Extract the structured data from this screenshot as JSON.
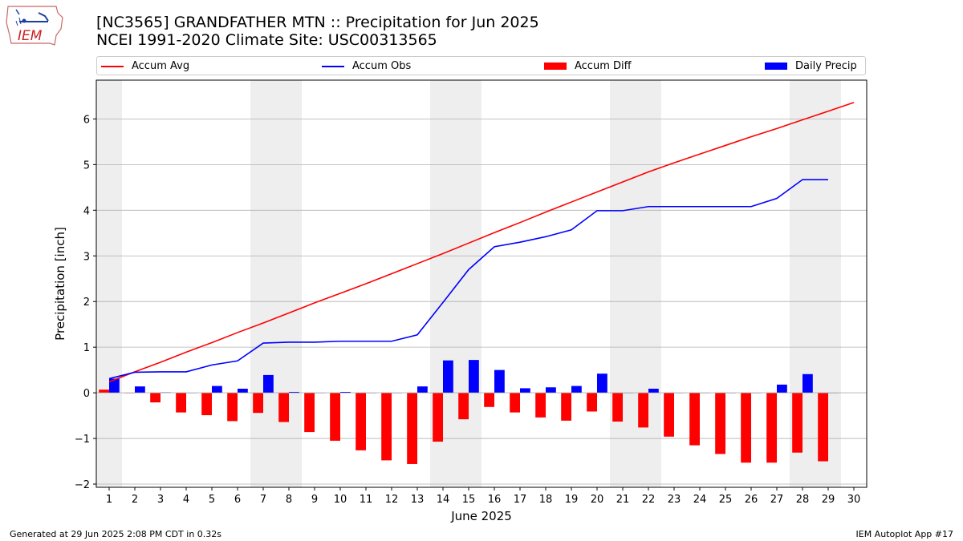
{
  "header": {
    "title_line1": "[NC3565] GRANDFATHER MTN :: Precipitation for Jun 2025",
    "title_line2": "NCEI 1991-2020 Climate Site: USC00313565",
    "logo_text": "IEM"
  },
  "footer": {
    "generated": "Generated at 29 Jun 2025 2:08 PM CDT in 0.32s",
    "app": "IEM Autoplot App #17"
  },
  "colors": {
    "accum_avg": "#ff0000",
    "accum_obs": "#0000ff",
    "accum_diff": "#ff0000",
    "daily_precip": "#0000ff",
    "weekend_shade": "#eeeeee",
    "grid": "#b0b0b0"
  },
  "chart_data": {
    "type": "bar",
    "xlabel": "June 2025",
    "ylabel": "Precipitation [inch]",
    "xlim": [
      0.5,
      30.5
    ],
    "ylim": [
      -2.07,
      6.85
    ],
    "x_ticks": [
      1,
      2,
      3,
      4,
      5,
      6,
      7,
      8,
      9,
      10,
      11,
      12,
      13,
      14,
      15,
      16,
      17,
      18,
      19,
      20,
      21,
      22,
      23,
      24,
      25,
      26,
      27,
      28,
      29,
      30
    ],
    "y_ticks": [
      -2,
      -1,
      0,
      1,
      2,
      3,
      4,
      5,
      6
    ],
    "grid": "horizontal",
    "legend_placement": "top",
    "shaded_weekend_spans": [
      [
        0.5,
        1.5
      ],
      [
        6.5,
        8.5
      ],
      [
        13.5,
        15.5
      ],
      [
        20.5,
        22.5
      ],
      [
        27.5,
        29.5
      ]
    ],
    "series": [
      {
        "name": "Accum Avg",
        "kind": "line",
        "x": [
          1,
          2,
          3,
          4,
          5,
          6,
          7,
          8,
          9,
          10,
          11,
          12,
          13,
          14,
          15,
          16,
          17,
          18,
          19,
          20,
          21,
          22,
          23,
          24,
          25,
          26,
          27,
          28,
          29,
          30
        ],
        "values": [
          0.24,
          0.46,
          0.67,
          0.89,
          1.1,
          1.32,
          1.53,
          1.75,
          1.97,
          2.18,
          2.39,
          2.61,
          2.83,
          3.05,
          3.28,
          3.51,
          3.73,
          3.96,
          4.18,
          4.4,
          4.62,
          4.84,
          5.04,
          5.23,
          5.42,
          5.61,
          5.79,
          5.98,
          6.17,
          6.36
        ]
      },
      {
        "name": "Accum Obs",
        "kind": "line",
        "x": [
          1,
          2,
          3,
          4,
          5,
          6,
          7,
          8,
          9,
          10,
          11,
          12,
          13,
          14,
          15,
          16,
          17,
          18,
          19,
          20,
          21,
          22,
          23,
          24,
          25,
          26,
          27,
          28,
          29
        ],
        "values": [
          0.31,
          0.45,
          0.46,
          0.46,
          0.61,
          0.7,
          1.09,
          1.11,
          1.11,
          1.13,
          1.13,
          1.13,
          1.27,
          1.98,
          2.7,
          3.2,
          3.3,
          3.42,
          3.57,
          3.99,
          3.99,
          4.08,
          4.08,
          4.08,
          4.08,
          4.08,
          4.26,
          4.67,
          4.67
        ]
      },
      {
        "name": "Accum Diff",
        "kind": "bar",
        "x": [
          1,
          2,
          3,
          4,
          5,
          6,
          7,
          8,
          9,
          10,
          11,
          12,
          13,
          14,
          15,
          16,
          17,
          18,
          19,
          20,
          21,
          22,
          23,
          24,
          25,
          26,
          27,
          28,
          29
        ],
        "values": [
          0.07,
          -0.01,
          -0.21,
          -0.43,
          -0.49,
          -0.62,
          -0.44,
          -0.64,
          -0.86,
          -1.05,
          -1.26,
          -1.48,
          -1.56,
          -1.07,
          -0.58,
          -0.31,
          -0.43,
          -0.54,
          -0.61,
          -0.41,
          -0.63,
          -0.76,
          -0.96,
          -1.15,
          -1.34,
          -1.53,
          -1.53,
          -1.31,
          -1.5
        ]
      },
      {
        "name": "Daily Precip",
        "kind": "bar",
        "x": [
          1,
          2,
          3,
          4,
          5,
          6,
          7,
          8,
          9,
          10,
          11,
          12,
          13,
          14,
          15,
          16,
          17,
          18,
          19,
          20,
          21,
          22,
          23,
          24,
          25,
          26,
          27,
          28,
          29
        ],
        "values": [
          0.31,
          0.14,
          0.01,
          0.0,
          0.15,
          0.09,
          0.39,
          0.02,
          0.0,
          0.02,
          0.0,
          0.0,
          0.14,
          0.71,
          0.72,
          0.5,
          0.1,
          0.12,
          0.15,
          0.42,
          0.0,
          0.09,
          0.0,
          0.0,
          0.0,
          0.0,
          0.18,
          0.41,
          0.0
        ]
      }
    ]
  }
}
